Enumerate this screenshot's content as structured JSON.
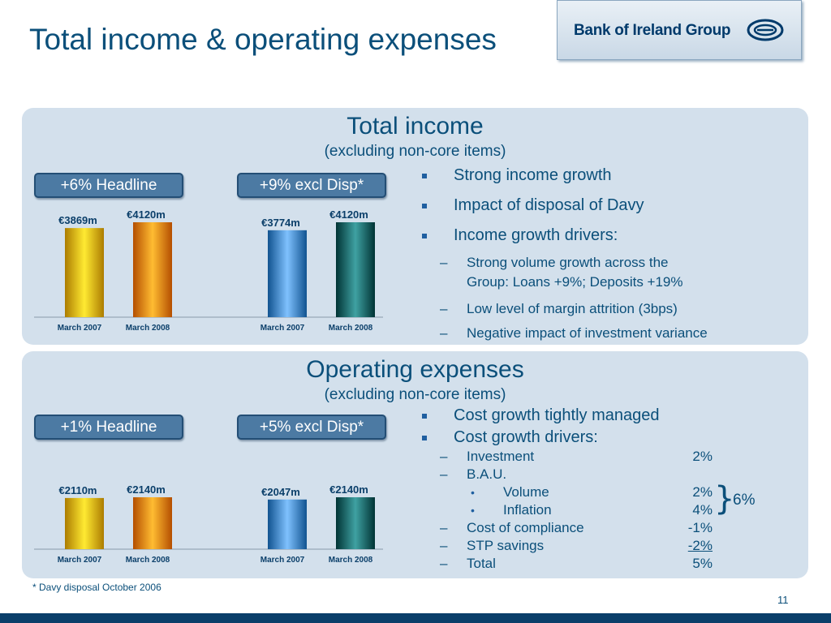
{
  "slide_title": "Total income & operating expenses",
  "logo_text": "Bank of Ireland Group",
  "income": {
    "title": "Total income",
    "subtitle": "(excluding non-core items)",
    "pill_left": "+6% Headline",
    "pill_right": "+9% excl Disp*",
    "bullets": [
      "Strong income growth",
      "Impact of disposal of Davy",
      "Income growth drivers:"
    ],
    "subbullets": [
      "Strong volume growth across the",
      "Group: Loans +9%; Deposits +19%",
      "Low level of margin attrition (3bps)",
      "Negative impact of investment variance"
    ]
  },
  "expenses": {
    "title": "Operating expenses",
    "subtitle": "(excluding non-core items)",
    "pill_left": "+1% Headline",
    "pill_right": "+5% excl Disp*",
    "bullets": [
      "Cost growth tightly managed",
      "Cost growth drivers:"
    ],
    "rows": [
      {
        "label": "Investment",
        "value": "2%"
      },
      {
        "label": "B.A.U.",
        "value": ""
      },
      {
        "label": "Volume",
        "value": "2%"
      },
      {
        "label": "Inflation",
        "value": "4%"
      },
      {
        "label": "Cost of compliance",
        "value": "-1%"
      },
      {
        "label": "STP savings",
        "value": "-2%"
      },
      {
        "label": "Total",
        "value": "5%"
      }
    ],
    "brace_total": "6%"
  },
  "chart_data": [
    {
      "type": "bar",
      "categories": [
        "March 2007",
        "March 2008",
        "March 2007",
        "March 2008"
      ],
      "values": [
        3869,
        4120,
        3774,
        4120
      ],
      "labels": [
        "€3869m",
        "€4120m",
        "€3774m",
        "€4120m"
      ],
      "colors": [
        "#e8b800",
        "#f08a00",
        "#4d8fcc",
        "#0d6f70"
      ],
      "ylim": [
        0,
        4500
      ]
    },
    {
      "type": "bar",
      "categories": [
        "March 2007",
        "March 2008",
        "March 2007",
        "March 2008"
      ],
      "values": [
        2110,
        2140,
        2047,
        2140
      ],
      "labels": [
        "€2110m",
        "€2140m",
        "€2047m",
        "€2140m"
      ],
      "colors": [
        "#e8b800",
        "#f08a00",
        "#4d8fcc",
        "#0d6f70"
      ],
      "ylim": [
        0,
        4500
      ]
    }
  ],
  "footnote": "* Davy disposal October 2006",
  "page_number": "11"
}
